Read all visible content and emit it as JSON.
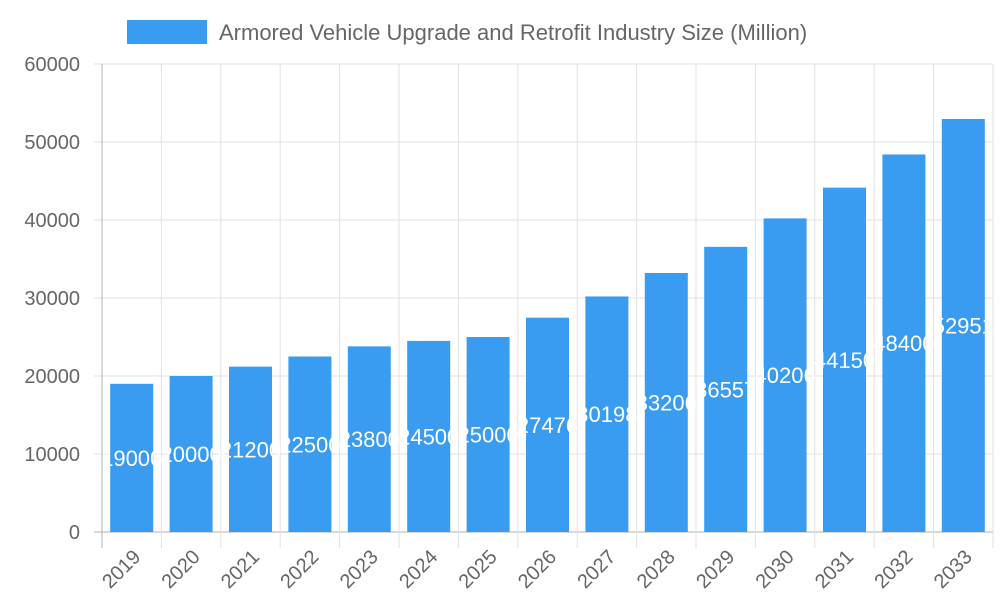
{
  "chart_data": {
    "type": "bar",
    "legend": {
      "label": "Armored Vehicle Upgrade and Retrofit Industry Size (Million)",
      "placement": "top"
    },
    "categories": [
      "2019",
      "2020",
      "2021",
      "2022",
      "2023",
      "2024",
      "2025",
      "2026",
      "2027",
      "2028",
      "2029",
      "2030",
      "2031",
      "2032",
      "2033"
    ],
    "series": [
      {
        "name": "Armored Vehicle Upgrade and Retrofit Industry Size (Million)",
        "values": [
          19000,
          20000,
          21200,
          22500,
          23800,
          24500,
          25000,
          27476,
          30198,
          33206,
          36557,
          40206,
          44150,
          48400,
          52951
        ]
      }
    ],
    "ylim": [
      0,
      60000
    ],
    "yticks": [
      0,
      10000,
      20000,
      30000,
      40000,
      50000,
      60000
    ],
    "grid": true,
    "data_labels": true,
    "colors": {
      "bar": "#3a9cf0",
      "grid": "#e0e0e0",
      "axis": "#b0b0b0",
      "text": "#666666",
      "label": "#ffffff"
    }
  }
}
